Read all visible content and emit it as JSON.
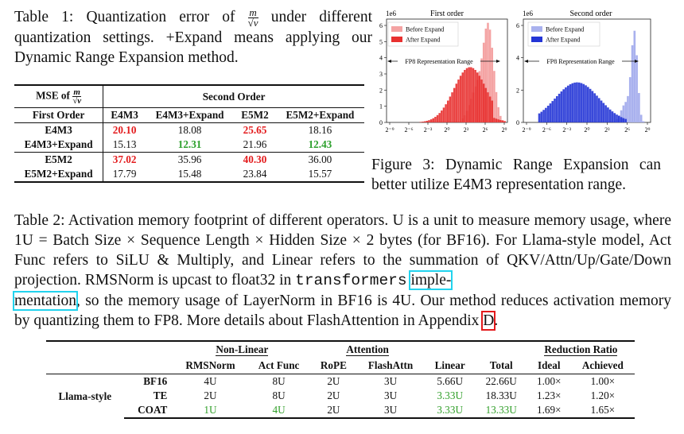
{
  "table1": {
    "caption_prefix": "Table 1:  Quantization error of",
    "caption_suffix": "under different quantization settings.  +Expand means applying our Dynamic Range Expansion method.",
    "frac_num": "m",
    "frac_den": "√v",
    "mse_label": "MSE of",
    "second_order": "Second Order",
    "first_order": "First Order",
    "columns": [
      "E4M3",
      "E4M3+Expand",
      "E5M2",
      "E5M2+Expand"
    ],
    "rows": [
      {
        "label": "E4M3",
        "values": [
          "20.10",
          "18.08",
          "25.65",
          "18.16"
        ],
        "styles": [
          "red",
          "",
          "red",
          ""
        ]
      },
      {
        "label": "E4M3+Expand",
        "values": [
          "15.13",
          "12.31",
          "21.96",
          "12.43"
        ],
        "styles": [
          "",
          "green",
          "",
          "green"
        ]
      },
      {
        "label": "E5M2",
        "values": [
          "37.02",
          "35.96",
          "40.30",
          "36.00"
        ],
        "styles": [
          "red",
          "",
          "red",
          ""
        ]
      },
      {
        "label": "E5M2+Expand",
        "values": [
          "17.79",
          "15.48",
          "23.84",
          "15.57"
        ],
        "styles": [
          "",
          "",
          "",
          ""
        ]
      }
    ]
  },
  "figure3": {
    "caption": "Figure 3:  Dynamic Range Expansion can better utilize E4M3 representation range.",
    "left": {
      "title": "First order",
      "scale": "1e6",
      "yticks": [
        "0",
        "1",
        "2",
        "3",
        "4",
        "5",
        "6"
      ],
      "legend": [
        "Before Expand",
        "After Expand"
      ],
      "range_label": "FP8 Representation Range",
      "colors": {
        "before": "#f4a3a3",
        "after": "#e8302f"
      }
    },
    "right": {
      "title": "Second order",
      "scale": "1e6",
      "yticks": [
        "0",
        "2",
        "4",
        "6"
      ],
      "legend": [
        "Before Expand",
        "After Expand"
      ],
      "range_label": "FP8 Representation Range",
      "colors": {
        "before": "#a9b1ee",
        "after": "#2335d6"
      }
    },
    "xticks": [
      "2⁻⁹",
      "2⁻⁶",
      "2⁻³",
      "2⁰",
      "2³",
      "2⁶",
      "2⁹"
    ]
  },
  "table2": {
    "caption_a": "Table 2:  Activation memory footprint of different operators.  U is a unit to measure memory usage, where 1U = Batch Size × Sequence Length × Hidden Size × 2 bytes (for BF16).  For Llama-style model, Act Func refers to SiLU & Multiply, and Linear refers to the summation of QKV/Attn/Up/Gate/Down projection.  RMSNorm is upcast to float32 in",
    "caption_code": "transformers",
    "caption_link1a": "imple-",
    "caption_link1b": "mentation",
    "caption_b": ", so the memory usage of LayerNorm in BF16 is 4U. Our method reduces activation memory by quantizing them to FP8. More details about FlashAttention in Appendix",
    "caption_link2": "D",
    "caption_end": ".",
    "groups": {
      "nonlinear": "Non-Linear",
      "attention": "Attention",
      "reduction": "Reduction Ratio"
    },
    "columns": [
      "RMSNorm",
      "Act Func",
      "RoPE",
      "FlashAttn",
      "Linear",
      "Total",
      "Ideal",
      "Achieved"
    ],
    "model": "Llama-style",
    "rows": [
      {
        "label": "BF16",
        "values": [
          "4U",
          "8U",
          "2U",
          "3U",
          "5.66U",
          "22.66U",
          "1.00×",
          "1.00×"
        ],
        "styles": [
          "",
          "",
          "",
          "",
          "",
          "",
          "",
          ""
        ]
      },
      {
        "label": "TE",
        "values": [
          "2U",
          "8U",
          "2U",
          "3U",
          "3.33U",
          "18.33U",
          "1.23×",
          "1.20×"
        ],
        "styles": [
          "",
          "",
          "",
          "",
          "g",
          "",
          "",
          ""
        ]
      },
      {
        "label": "COAT",
        "values": [
          "1U",
          "4U",
          "2U",
          "3U",
          "3.33U",
          "13.33U",
          "1.69×",
          "1.65×"
        ],
        "styles": [
          "g",
          "g",
          "",
          "",
          "g",
          "g",
          "",
          ""
        ]
      }
    ]
  }
}
